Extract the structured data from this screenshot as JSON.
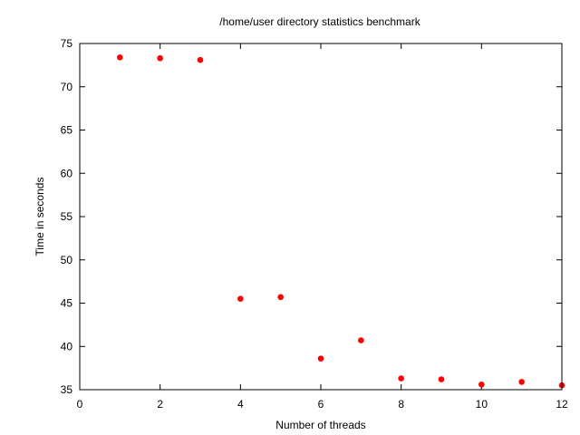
{
  "chart_data": {
    "type": "scatter",
    "title": "/home/user directory statistics benchmark",
    "xlabel": "Number of threads",
    "ylabel": "Time in seconds",
    "xlim": [
      0,
      12
    ],
    "ylim": [
      35,
      75
    ],
    "xticks": [
      0,
      2,
      4,
      6,
      8,
      10,
      12
    ],
    "yticks": [
      35,
      40,
      45,
      50,
      55,
      60,
      65,
      70,
      75
    ],
    "grid": false,
    "legend": "none",
    "marker_color": "#ff0000",
    "series": [
      {
        "points": [
          {
            "x": 1,
            "y": 73.4
          },
          {
            "x": 2,
            "y": 73.3
          },
          {
            "x": 3,
            "y": 73.1
          },
          {
            "x": 4,
            "y": 45.5
          },
          {
            "x": 5,
            "y": 45.7
          },
          {
            "x": 6,
            "y": 38.6
          },
          {
            "x": 7,
            "y": 40.7
          },
          {
            "x": 8,
            "y": 36.3
          },
          {
            "x": 9,
            "y": 36.2
          },
          {
            "x": 10,
            "y": 35.6
          },
          {
            "x": 11,
            "y": 35.9
          },
          {
            "x": 12,
            "y": 35.5
          }
        ]
      }
    ]
  }
}
